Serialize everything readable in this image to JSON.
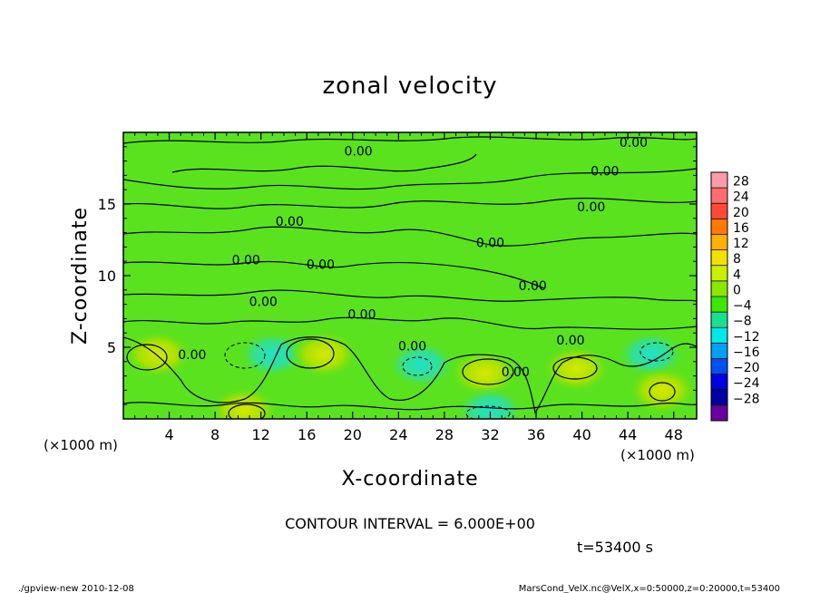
{
  "chart_data": {
    "type": "heatmap",
    "title": "zonal velocity",
    "xlabel": "X-coordinate",
    "ylabel": "Z-coordinate",
    "x_unit": "(×1000 m)",
    "y_unit": "(×1000 m)",
    "xlim": [
      0,
      50
    ],
    "ylim": [
      0,
      20
    ],
    "x_ticks": [
      "4",
      "8",
      "12",
      "16",
      "20",
      "24",
      "28",
      "32",
      "36",
      "40",
      "44",
      "48"
    ],
    "y_ticks": [
      "5",
      "10",
      "15"
    ],
    "contour_interval_text": "CONTOUR INTERVAL = 6.000E+00",
    "time_text": "t=53400 s",
    "contour_label": "0.00",
    "colorbar": {
      "labels": [
        "28",
        "24",
        "20",
        "16",
        "12",
        "8",
        "4",
        "0",
        "−4",
        "−8",
        "−12",
        "−16",
        "−20",
        "−24",
        "−28"
      ],
      "colors": [
        "#ff9aa8",
        "#ff6e6e",
        "#ff4a3a",
        "#ff7a00",
        "#ffb000",
        "#f4e000",
        "#c8f000",
        "#8ce600",
        "#3ee600",
        "#18e090",
        "#00e8e8",
        "#00a0f0",
        "#0050f0",
        "#0000e0",
        "#0000a0",
        "#6a00a0"
      ]
    },
    "features": [
      {
        "x": 3,
        "z": 4.5,
        "kind": "positive"
      },
      {
        "x": 13,
        "z": 4.5,
        "kind": "negative"
      },
      {
        "x": 17.5,
        "z": 4.5,
        "kind": "positive"
      },
      {
        "x": 26,
        "z": 3.8,
        "kind": "negative"
      },
      {
        "x": 31.5,
        "z": 3.2,
        "kind": "positive"
      },
      {
        "x": 39.5,
        "z": 3.5,
        "kind": "positive"
      },
      {
        "x": 46,
        "z": 4.5,
        "kind": "negative"
      },
      {
        "x": 10.5,
        "z": 0.6,
        "kind": "positive"
      },
      {
        "x": 32,
        "z": 0.6,
        "kind": "negative"
      },
      {
        "x": 47,
        "z": 2.0,
        "kind": "positive"
      }
    ],
    "contour_label_positions": [
      {
        "x": 20.5,
        "z": 18.7
      },
      {
        "x": 44.5,
        "z": 19.3
      },
      {
        "x": 42,
        "z": 17.3
      },
      {
        "x": 40.8,
        "z": 14.8
      },
      {
        "x": 14.5,
        "z": 13.8
      },
      {
        "x": 32,
        "z": 12.3
      },
      {
        "x": 10.7,
        "z": 11.1
      },
      {
        "x": 17.2,
        "z": 10.8
      },
      {
        "x": 12.2,
        "z": 8.2
      },
      {
        "x": 20.8,
        "z": 7.3
      },
      {
        "x": 35.7,
        "z": 9.3
      },
      {
        "x": 6,
        "z": 4.5
      },
      {
        "x": 25.2,
        "z": 5.1
      },
      {
        "x": 39,
        "z": 5.5
      },
      {
        "x": 34.2,
        "z": 3.3
      }
    ]
  },
  "footer": {
    "left": "./gpview-new  2010-12-08",
    "right": "MarsCond_VelX.nc@VelX,x=0:50000,z=0:20000,t=53400"
  }
}
